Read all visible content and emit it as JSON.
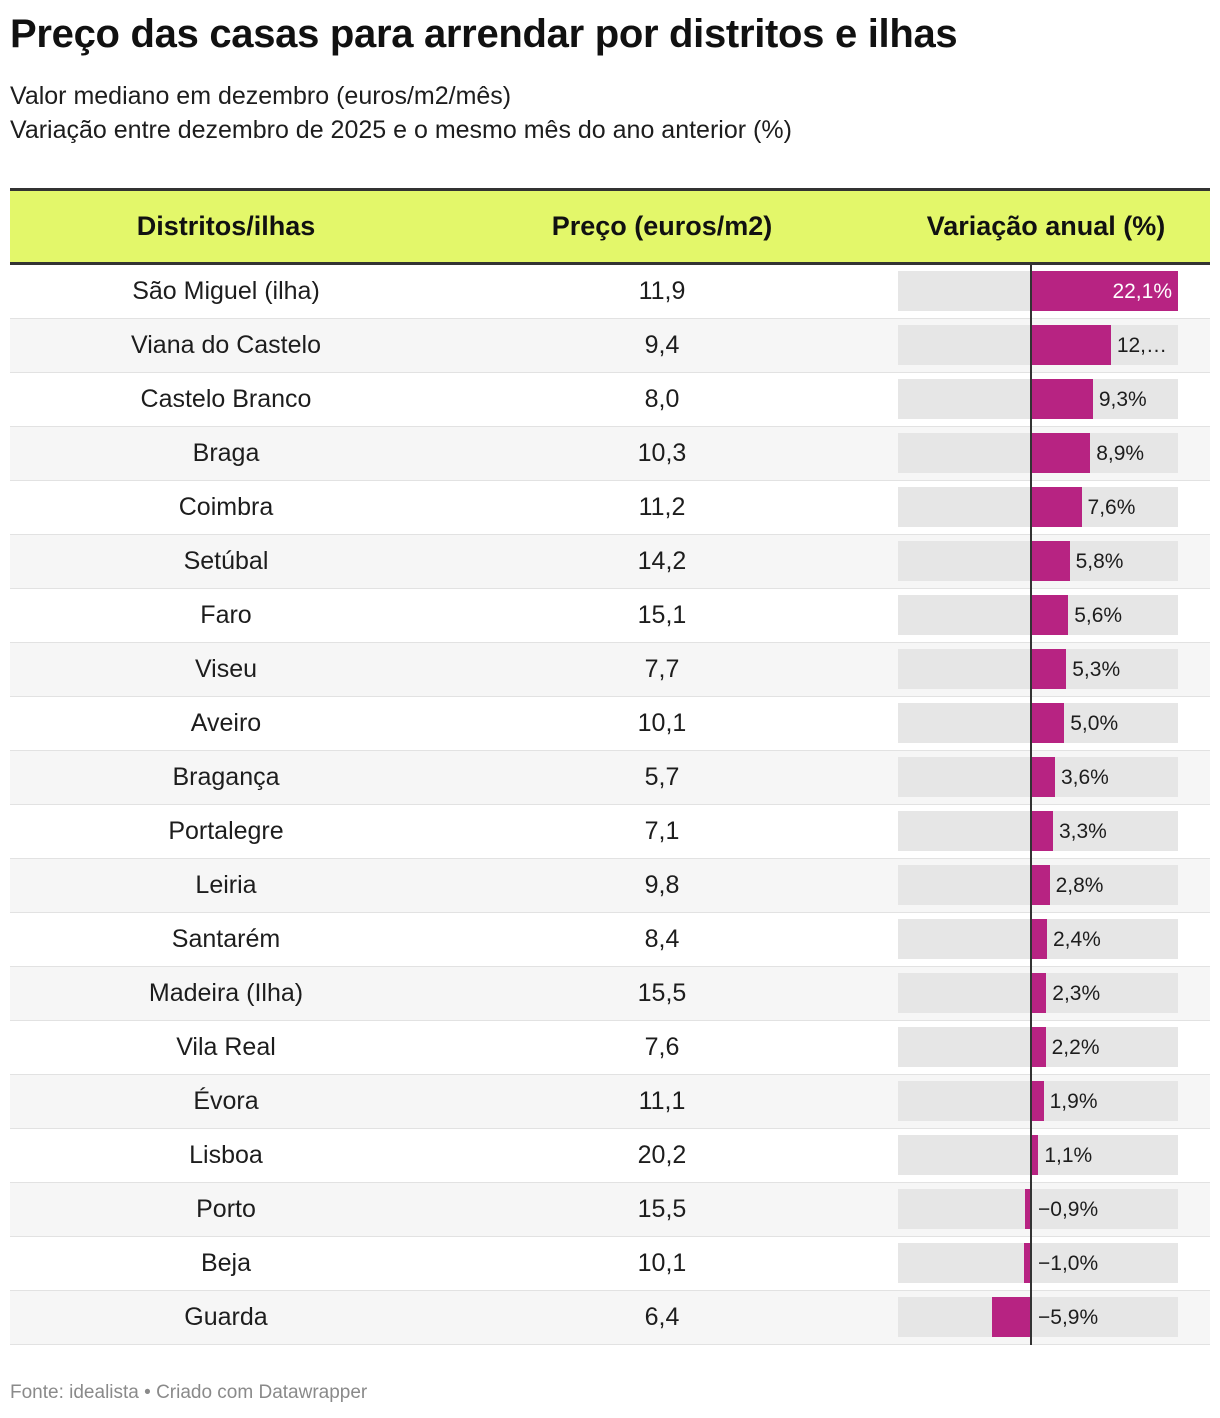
{
  "title": "Preço das casas para arrendar por distritos e ilhas",
  "subtitle": {
    "line1": "Valor mediano em dezembro (euros/m2/mês)",
    "line2": "Variação entre dezembro de 2025 e o mesmo mês do ano anterior (%)"
  },
  "colors": {
    "header_bg": "#e3f76a",
    "bar": "#b72382",
    "bar_bg": "#e6e6e6"
  },
  "chart_data": {
    "type": "table",
    "columns": [
      "Distritos/ilhas",
      "Preço (euros/m2)",
      "Variação anual (%)"
    ],
    "xlim": [
      -10,
      22.1
    ],
    "rows": [
      {
        "name": "São Miguel (ilha)",
        "price": "11,9",
        "change": 22.1,
        "label": "22,1%"
      },
      {
        "name": "Viana do Castelo",
        "price": "9,4",
        "change": 12.0,
        "label": "12,…"
      },
      {
        "name": "Castelo Branco",
        "price": "8,0",
        "change": 9.3,
        "label": "9,3%"
      },
      {
        "name": "Braga",
        "price": "10,3",
        "change": 8.9,
        "label": "8,9%"
      },
      {
        "name": "Coimbra",
        "price": "11,2",
        "change": 7.6,
        "label": "7,6%"
      },
      {
        "name": "Setúbal",
        "price": "14,2",
        "change": 5.8,
        "label": "5,8%"
      },
      {
        "name": "Faro",
        "price": "15,1",
        "change": 5.6,
        "label": "5,6%"
      },
      {
        "name": "Viseu",
        "price": "7,7",
        "change": 5.3,
        "label": "5,3%"
      },
      {
        "name": "Aveiro",
        "price": "10,1",
        "change": 5.0,
        "label": "5,0%"
      },
      {
        "name": "Bragança",
        "price": "5,7",
        "change": 3.6,
        "label": "3,6%"
      },
      {
        "name": "Portalegre",
        "price": "7,1",
        "change": 3.3,
        "label": "3,3%"
      },
      {
        "name": "Leiria",
        "price": "9,8",
        "change": 2.8,
        "label": "2,8%"
      },
      {
        "name": "Santarém",
        "price": "8,4",
        "change": 2.4,
        "label": "2,4%"
      },
      {
        "name": "Madeira (Ilha)",
        "price": "15,5",
        "change": 2.3,
        "label": "2,3%"
      },
      {
        "name": "Vila Real",
        "price": "7,6",
        "change": 2.2,
        "label": "2,2%"
      },
      {
        "name": "Évora",
        "price": "11,1",
        "change": 1.9,
        "label": "1,9%"
      },
      {
        "name": "Lisboa",
        "price": "20,2",
        "change": 1.1,
        "label": "1,1%"
      },
      {
        "name": "Porto",
        "price": "15,5",
        "change": -0.9,
        "label": "−0,9%"
      },
      {
        "name": "Beja",
        "price": "10,1",
        "change": -1.0,
        "label": "−1,0%"
      },
      {
        "name": "Guarda",
        "price": "6,4",
        "change": -5.9,
        "label": "−5,9%"
      }
    ]
  },
  "footer": "Fonte: idealista • Criado com Datawrapper"
}
